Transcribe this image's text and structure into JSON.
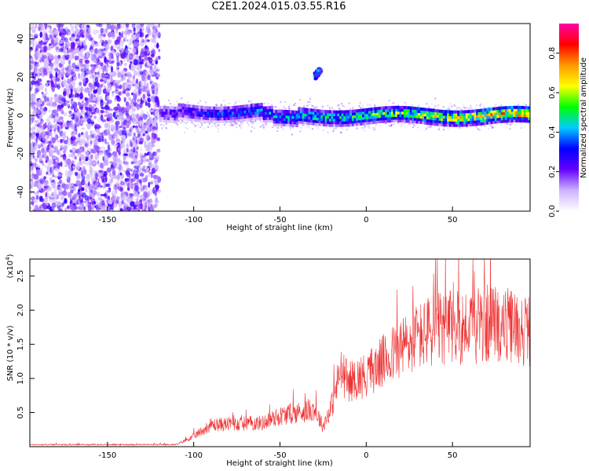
{
  "title": "C2E1.2024.015.03.55.R16",
  "chart_data": [
    {
      "type": "heatmap",
      "xlabel": "Height of straight line (km)",
      "ylabel": "Frequency (Hz)",
      "xlim": [
        -195,
        95
      ],
      "ylim": [
        -50,
        48
      ],
      "xticks": [
        -150,
        -100,
        -50,
        0,
        50
      ],
      "yticks": [
        -40,
        -20,
        0,
        20,
        40
      ],
      "grid": false,
      "colorbar": {
        "label": "Normalized spectral amplitude",
        "range": [
          0,
          0.95
        ],
        "ticks": [
          0.0,
          0.2,
          0.4,
          0.6,
          0.8
        ],
        "tick_labels": [
          "0.0",
          "0.2",
          "0.4",
          "0.6",
          "0.8"
        ],
        "colors": [
          "#ffffff",
          "#ccb3ff",
          "#6600ff",
          "#0000ff",
          "#00ccff",
          "#00ff00",
          "#ffff00",
          "#ff9900",
          "#ff0000",
          "#ff00aa"
        ]
      },
      "features": [
        {
          "label": "noise region",
          "x_range": [
            -195,
            -120
          ],
          "y_range": [
            -50,
            48
          ],
          "amplitude": 0.12
        },
        {
          "label": "echo band",
          "x_range": [
            -120,
            95
          ],
          "center_hz": 0,
          "half_width_hz": 4,
          "peak_amplitude": 0.85
        },
        {
          "label": "isolated echo",
          "x": -28,
          "y": 22,
          "amplitude": 0.3
        }
      ]
    },
    {
      "type": "line",
      "xlabel": "Height of straight line (km)",
      "ylabel": "SNR (10 * v/v)",
      "y_multiplier_label": "(x10",
      "y_multiplier_exp": "4",
      "y_multiplier_close": ")",
      "xlim": [
        -195,
        95
      ],
      "ylim": [
        0,
        2.75
      ],
      "xticks": [
        -150,
        -100,
        -50,
        0,
        50
      ],
      "yticks": [
        0.5,
        1.0,
        1.5,
        2.0,
        2.5
      ],
      "ytick_labels": [
        "0.5",
        "1.0",
        "1.5",
        "2.0",
        "2.5"
      ],
      "color": "#ee3333",
      "grid": false,
      "profile_x": [
        -195,
        -110,
        -100,
        -90,
        -80,
        -60,
        -50,
        -40,
        -30,
        -25,
        -20,
        -15,
        -10,
        0,
        20,
        30,
        40,
        50,
        60,
        70,
        80,
        95
      ],
      "profile_y": [
        0.03,
        0.03,
        0.15,
        0.32,
        0.33,
        0.35,
        0.45,
        0.5,
        0.55,
        0.3,
        0.6,
        1.1,
        0.95,
        1.05,
        1.45,
        1.6,
        1.7,
        1.75,
        1.75,
        1.8,
        1.78,
        1.7
      ]
    }
  ]
}
